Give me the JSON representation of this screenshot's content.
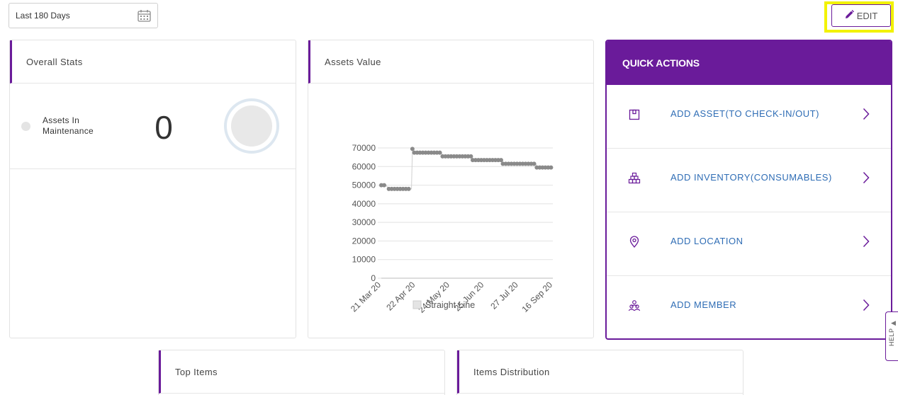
{
  "date_range": {
    "value": "Last 180 Days",
    "icon": "calendar-icon"
  },
  "toolbar": {
    "edit_label": "EDIT",
    "edit_icon": "pencil-icon",
    "highlight_color": "#f2f200"
  },
  "colors": {
    "accent": "#6a1b9a",
    "link": "#2f6db5"
  },
  "overall_stats": {
    "title": "Overall Stats",
    "assets_in_maintenance_label": "Assets In Maintenance",
    "assets_in_maintenance_value": "0"
  },
  "assets_value": {
    "title": "Assets Value",
    "legend": "Straight Line"
  },
  "chart_data": {
    "type": "line",
    "title": "",
    "xlabel": "",
    "ylabel": "",
    "ylim": [
      0,
      70000
    ],
    "yticks": [
      "70000",
      "60000",
      "50000",
      "40000",
      "30000",
      "20000",
      "10000",
      "0"
    ],
    "xticks": [
      "21 Mar 20",
      "22 Apr 20",
      "24 May 20",
      "25 Jun 20",
      "27 Jul 20",
      "16 Sep 20"
    ],
    "legend": "bottom",
    "grid": true,
    "series": [
      {
        "name": "Straight Line",
        "color": "#8a8a8a",
        "points": [
          [
            "2020-03-21",
            50000
          ],
          [
            "2020-03-26",
            50000
          ],
          [
            "2020-03-29",
            48000
          ],
          [
            "2020-04-22",
            48000
          ],
          [
            "2020-04-23",
            69500
          ],
          [
            "2020-04-25",
            67500
          ],
          [
            "2020-05-24",
            67500
          ],
          [
            "2020-05-25",
            65500
          ],
          [
            "2020-06-25",
            65500
          ],
          [
            "2020-06-26",
            63500
          ],
          [
            "2020-07-27",
            63500
          ],
          [
            "2020-07-28",
            61500
          ],
          [
            "2020-09-01",
            61500
          ],
          [
            "2020-09-02",
            59500
          ],
          [
            "2020-09-19",
            59500
          ]
        ]
      }
    ]
  },
  "quick_actions": {
    "title": "QUICK ACTIONS",
    "items": [
      {
        "label": "ADD ASSET(TO CHECK-IN/OUT)",
        "icon": "asset-box-icon"
      },
      {
        "label": "ADD INVENTORY(CONSUMABLES)",
        "icon": "inventory-stack-icon"
      },
      {
        "label": "ADD LOCATION",
        "icon": "location-pin-icon"
      },
      {
        "label": "ADD MEMBER",
        "icon": "members-icon"
      }
    ]
  },
  "top_items": {
    "title": "Top Items"
  },
  "items_distribution": {
    "title": "Items Distribution"
  },
  "help": {
    "label": "HELP"
  }
}
